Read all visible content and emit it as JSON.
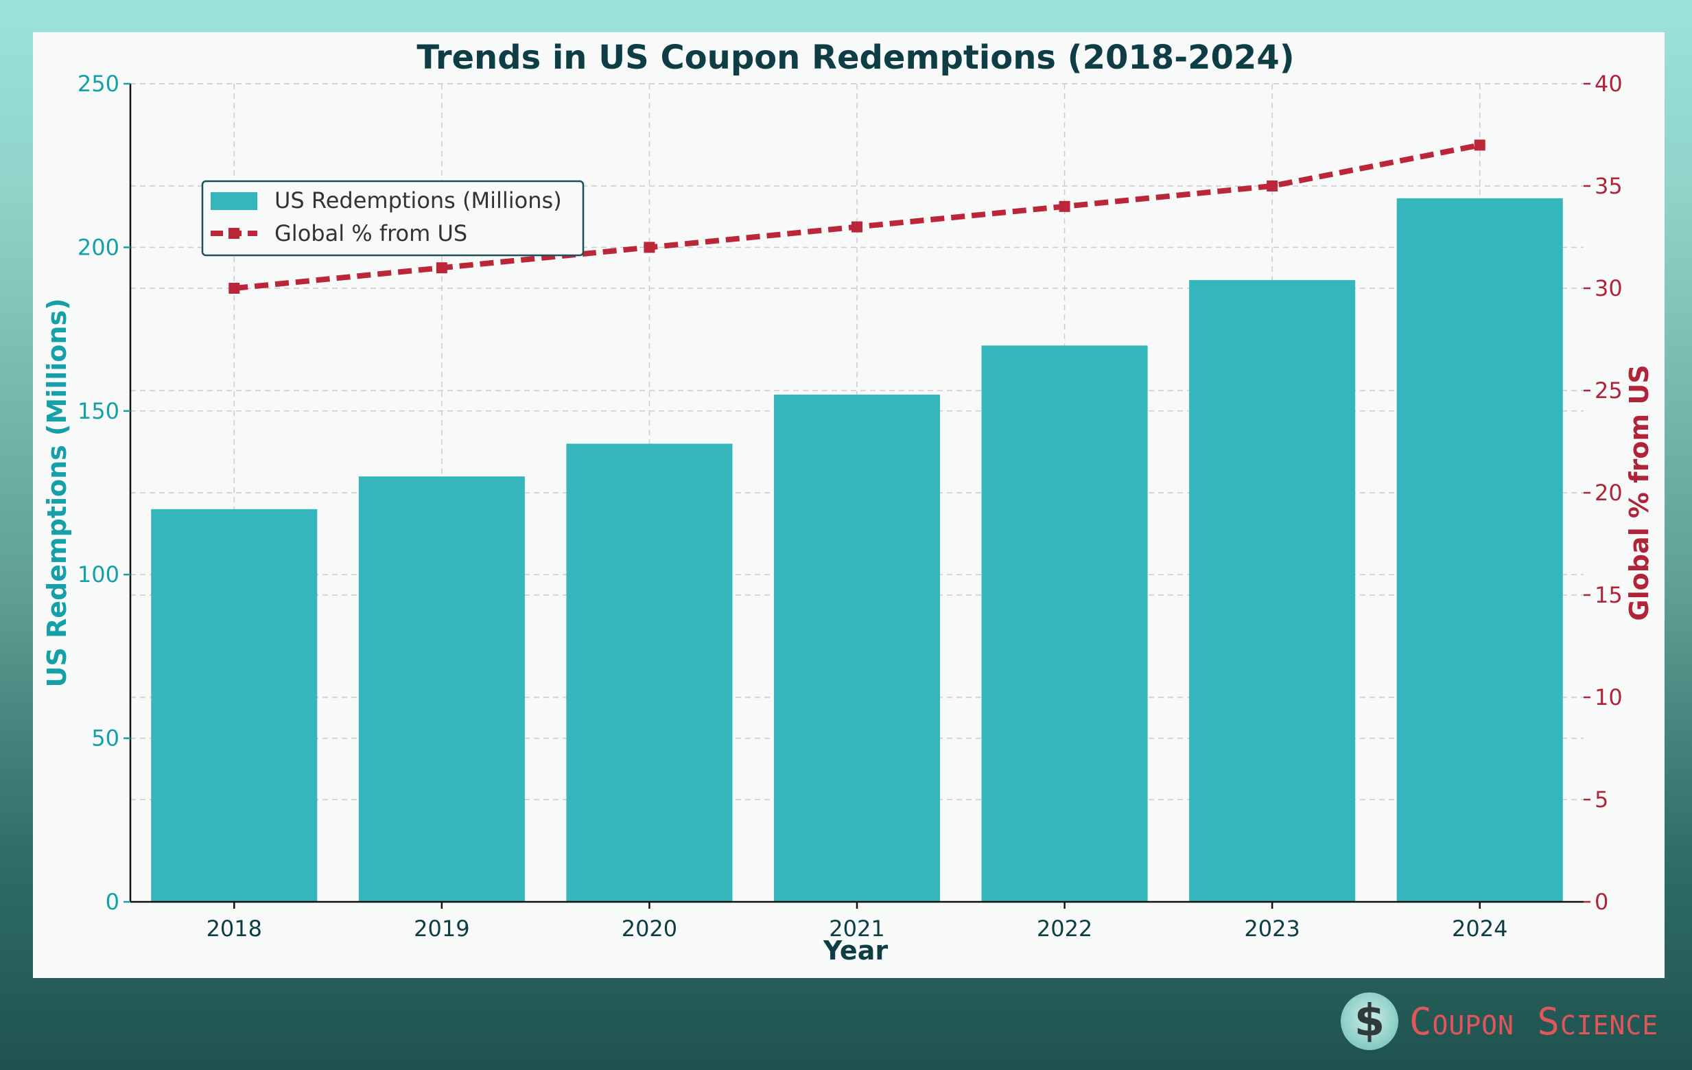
{
  "chart_data": {
    "type": "bar+line",
    "title": "Trends in US Coupon Redemptions (2018-2024)",
    "xlabel": "Year",
    "ylabel": "US Redemptions (Millions)",
    "y2label": "Global % from US",
    "categories": [
      "2018",
      "2019",
      "2020",
      "2021",
      "2022",
      "2023",
      "2024"
    ],
    "series": [
      {
        "name": "US Redemptions (Millions)",
        "type": "bar",
        "axis": "left",
        "values": [
          120,
          130,
          140,
          155,
          170,
          190,
          215
        ]
      },
      {
        "name": "Global % from US",
        "type": "line",
        "axis": "right",
        "values": [
          30,
          31,
          32,
          33,
          34,
          35,
          37
        ]
      }
    ],
    "ylim": [
      0,
      250
    ],
    "y2lim": [
      0,
      40
    ],
    "yticks": [
      "0",
      "50",
      "100",
      "150",
      "200",
      "250"
    ],
    "y2ticks": [
      "0",
      "5",
      "10",
      "15",
      "20",
      "25",
      "30",
      "35",
      "40"
    ],
    "grid": true,
    "legend_position": "upper-left",
    "colors": {
      "bar": "#35b6bd",
      "line": "#bb2638",
      "title": "#0f3d45",
      "left_axis": "#15a0a8",
      "right_axis": "#b0243a"
    }
  },
  "brand": {
    "name": "Coupon Science",
    "mark": "$"
  }
}
